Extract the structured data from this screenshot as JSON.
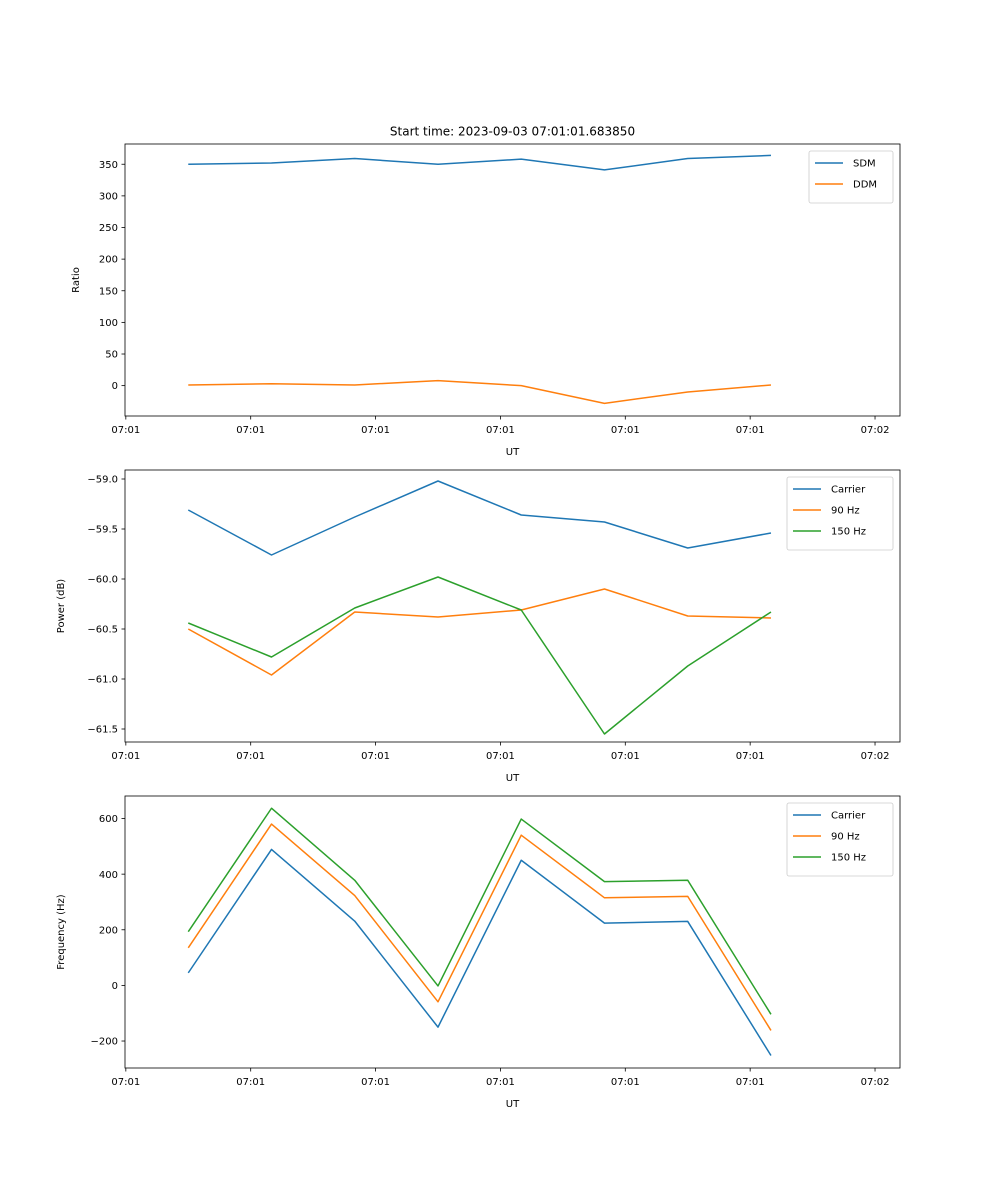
{
  "title": "Start time: 2023-09-03 07:01:01.683850",
  "colors": {
    "blue": "#1f77b4",
    "orange": "#ff7f0e",
    "green": "#2ca02c"
  },
  "chart_data": [
    {
      "type": "line",
      "title": "Start time: 2023-09-03 07:01:01.683850",
      "xlabel": "UT",
      "ylabel": "Ratio",
      "x": [
        0,
        1,
        2,
        3,
        4,
        5,
        6,
        7
      ],
      "xlim": [
        -0.76,
        8.55
      ],
      "xticks": [
        -0.75,
        0.75,
        2.25,
        3.75,
        5.25,
        6.75,
        8.25
      ],
      "xtick_labels": [
        "07:01",
        "07:01",
        "07:01",
        "07:01",
        "07:01",
        "07:01",
        "07:02"
      ],
      "ylim": [
        -48,
        382
      ],
      "yticks": [
        0,
        50,
        100,
        150,
        200,
        250,
        300,
        350
      ],
      "ytick_labels": [
        "0",
        "50",
        "100",
        "150",
        "200",
        "250",
        "300",
        "350"
      ],
      "series": [
        {
          "name": "SDM",
          "color": "#1f77b4",
          "values": [
            350,
            352,
            359,
            350,
            358,
            341,
            359,
            364
          ]
        },
        {
          "name": "DDM",
          "color": "#ff7f0e",
          "values": [
            1,
            3,
            1,
            8,
            0,
            -28,
            -10,
            1
          ]
        }
      ],
      "legend": "top-right",
      "grid": false
    },
    {
      "type": "line",
      "title": "",
      "xlabel": "UT",
      "ylabel": "Power (dB)",
      "x": [
        0,
        1,
        2,
        3,
        4,
        5,
        6,
        7
      ],
      "xlim": [
        -0.76,
        8.55
      ],
      "xticks": [
        -0.75,
        0.75,
        2.25,
        3.75,
        5.25,
        6.75,
        8.25
      ],
      "xtick_labels": [
        "07:01",
        "07:01",
        "07:01",
        "07:01",
        "07:01",
        "07:01",
        "07:02"
      ],
      "ylim": [
        -61.63,
        -58.91
      ],
      "yticks": [
        -61.5,
        -61.0,
        -60.5,
        -60.0,
        -59.5,
        -59.0
      ],
      "ytick_labels": [
        "−61.5",
        "−61.0",
        "−60.5",
        "−60.0",
        "−59.5",
        "−59.0"
      ],
      "series": [
        {
          "name": "Carrier",
          "color": "#1f77b4",
          "values": [
            -59.31,
            -59.76,
            -59.38,
            -59.02,
            -59.36,
            -59.43,
            -59.69,
            -59.54
          ]
        },
        {
          "name": "90 Hz",
          "color": "#ff7f0e",
          "values": [
            -60.5,
            -60.96,
            -60.33,
            -60.38,
            -60.31,
            -60.1,
            -60.37,
            -60.39
          ]
        },
        {
          "name": "150 Hz",
          "color": "#2ca02c",
          "values": [
            -60.44,
            -60.78,
            -60.29,
            -59.98,
            -60.31,
            -61.55,
            -60.87,
            -60.33
          ]
        }
      ],
      "legend": "top-right",
      "grid": false
    },
    {
      "type": "line",
      "title": "",
      "xlabel": "UT",
      "ylabel": "Frequency (Hz)",
      "x": [
        0,
        1,
        2,
        3,
        4,
        5,
        6,
        7
      ],
      "xlim": [
        -0.76,
        8.55
      ],
      "xticks": [
        -0.75,
        0.75,
        2.25,
        3.75,
        5.25,
        6.75,
        8.25
      ],
      "xtick_labels": [
        "07:01",
        "07:01",
        "07:01",
        "07:01",
        "07:01",
        "07:01",
        "07:02"
      ],
      "ylim": [
        -297,
        681
      ],
      "yticks": [
        -200,
        0,
        200,
        400,
        600
      ],
      "ytick_labels": [
        "−200",
        "0",
        "200",
        "400",
        "600"
      ],
      "series": [
        {
          "name": "Carrier",
          "color": "#1f77b4",
          "values": [
            45,
            489,
            231,
            -150,
            450,
            224,
            230,
            -252
          ]
        },
        {
          "name": "90 Hz",
          "color": "#ff7f0e",
          "values": [
            135,
            580,
            323,
            -59,
            540,
            315,
            320,
            -162
          ]
        },
        {
          "name": "150 Hz",
          "color": "#2ca02c",
          "values": [
            193,
            637,
            378,
            -2,
            598,
            373,
            378,
            -104
          ]
        }
      ],
      "legend": "top-right",
      "grid": false
    }
  ]
}
